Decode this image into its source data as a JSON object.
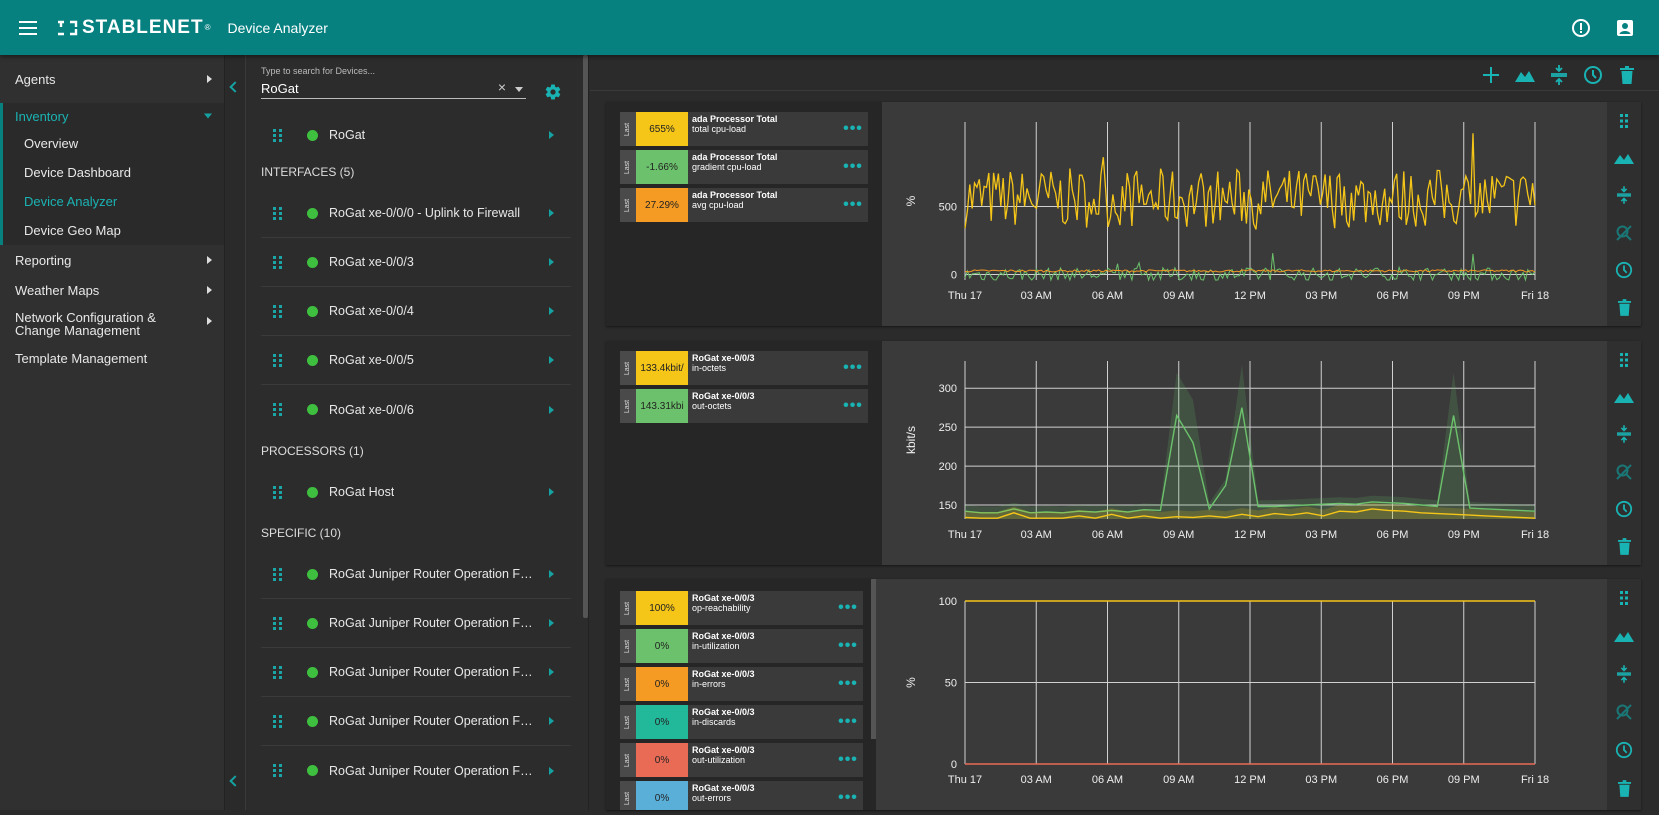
{
  "header": {
    "brand": "STABLENET",
    "brand_mark": "®",
    "app_title": "Device Analyzer",
    "info_icon": "info-icon",
    "user_icon": "user-card-icon"
  },
  "nav": {
    "agents": "Agents",
    "inventory": "Inventory",
    "inventory_items": [
      "Overview",
      "Device Dashboard",
      "Device Analyzer",
      "Device Geo Map"
    ],
    "reporting": "Reporting",
    "weather_maps": "Weather Maps",
    "ncm": "Network Configuration & Change Management",
    "template_mgmt": "Template Management"
  },
  "search": {
    "placeholder": "Type to search for Devices...",
    "value": "RoGat",
    "clear": "×"
  },
  "devices": {
    "root": "RoGat",
    "interfaces_header": "INTERFACES (5)",
    "interfaces": [
      "RoGat xe-0/0/0 - Uplink to Firewall",
      "RoGat xe-0/0/3",
      "RoGat xe-0/0/4",
      "RoGat xe-0/0/5",
      "RoGat xe-0/0/6"
    ],
    "processors_header": "PROCESSORS (1)",
    "processors": [
      "RoGat Host"
    ],
    "specific_header": "SPECIFIC (10)",
    "specific": [
      "RoGat Juniper Router Operation Fan ...",
      "RoGat Juniper Router Operation Fan ...",
      "RoGat Juniper Router Operation Fan ...",
      "RoGat Juniper Router Operation Fan ...",
      "RoGat Juniper Router Operation Fan ..."
    ]
  },
  "toolbar": {
    "icons": [
      "add-icon",
      "area-chart-icon",
      "compress-icon",
      "clock-icon",
      "trash-icon"
    ]
  },
  "colors": {
    "header": "#078080",
    "accent": "#1ab3b3",
    "yellow": "#f5c518",
    "green": "#6cc26c",
    "orange": "#f59a23",
    "teal_series": "#22b89a",
    "red": "#e96a55",
    "blue": "#5aafd8"
  },
  "legend_tag": "Last",
  "charts": [
    {
      "ylabel": "%",
      "legend": [
        {
          "value": "655%",
          "name": "ada Processor Total",
          "metric": "total cpu-load",
          "color": "#f5c518"
        },
        {
          "value": "-1.66%",
          "name": "ada Processor Total",
          "metric": "gradient cpu-load",
          "color": "#6cc26c"
        },
        {
          "value": "27.29%",
          "name": "ada Processor Total",
          "metric": "avg cpu-load",
          "color": "#f59a23"
        }
      ]
    },
    {
      "ylabel": "kbit/s",
      "legend": [
        {
          "value": "133.4kbit/",
          "name": "RoGat xe-0/0/3",
          "metric": "in-octets",
          "color": "#f5c518"
        },
        {
          "value": "143.31kbi",
          "name": "RoGat xe-0/0/3",
          "metric": "out-octets",
          "color": "#6cc26c"
        }
      ]
    },
    {
      "ylabel": "%",
      "legend": [
        {
          "value": "100%",
          "name": "RoGat xe-0/0/3",
          "metric": "op-reachability",
          "color": "#f5c518"
        },
        {
          "value": "0%",
          "name": "RoGat xe-0/0/3",
          "metric": "in-utilization",
          "color": "#6cc26c"
        },
        {
          "value": "0%",
          "name": "RoGat xe-0/0/3",
          "metric": "in-errors",
          "color": "#f59a23"
        },
        {
          "value": "0%",
          "name": "RoGat xe-0/0/3",
          "metric": "in-discards",
          "color": "#22b89a"
        },
        {
          "value": "0%",
          "name": "RoGat xe-0/0/3",
          "metric": "out-utilization",
          "color": "#e96a55"
        },
        {
          "value": "0%",
          "name": "RoGat xe-0/0/3",
          "metric": "out-errors",
          "color": "#5aafd8"
        }
      ]
    }
  ],
  "chart_data": [
    {
      "type": "line",
      "title": "",
      "ylabel": "%",
      "x_ticks": [
        "Thu 17",
        "03 AM",
        "06 AM",
        "09 AM",
        "12 PM",
        "03 PM",
        "06 PM",
        "09 PM",
        "Fri 18"
      ],
      "y_ticks": [
        0,
        500
      ],
      "ylim": [
        -40,
        1120
      ],
      "series": [
        {
          "name": "total cpu-load",
          "color": "#f5c518",
          "approx_level": 560,
          "spread": 220
        },
        {
          "name": "gradient cpu-load",
          "color": "#6cc26c",
          "approx_level": 0,
          "spread": 50
        },
        {
          "name": "avg cpu-load",
          "color": "#f59a23",
          "approx_level": 27,
          "spread": 8
        }
      ]
    },
    {
      "type": "area",
      "title": "",
      "ylabel": "kbit/s",
      "x_ticks": [
        "Thu 17",
        "03 AM",
        "06 AM",
        "09 AM",
        "12 PM",
        "03 PM",
        "06 PM",
        "09 PM",
        "Fri 18"
      ],
      "y_ticks": [
        150,
        200,
        250,
        300
      ],
      "ylim": [
        132,
        335
      ],
      "series": [
        {
          "name": "in-octets",
          "color": "#f5c518",
          "values": [
            134,
            133,
            133,
            140,
            133,
            133,
            133,
            136,
            133,
            138,
            133,
            136,
            133,
            135,
            134,
            136,
            134,
            138,
            135,
            139,
            137,
            140,
            136,
            142,
            141,
            145,
            143,
            142,
            140,
            139,
            138,
            137,
            136,
            135,
            134,
            133
          ]
        },
        {
          "name": "out-octets",
          "color": "#6cc26c",
          "values": [
            142,
            140,
            140,
            145,
            140,
            141,
            140,
            142,
            141,
            143,
            141,
            144,
            143,
            265,
            230,
            145,
            175,
            275,
            148,
            148,
            149,
            150,
            151,
            152,
            151,
            154,
            153,
            152,
            150,
            148,
            265,
            146,
            145,
            144,
            143,
            142
          ]
        }
      ]
    },
    {
      "type": "line",
      "title": "",
      "ylabel": "%",
      "x_ticks": [
        "Thu 17",
        "03 AM",
        "06 AM",
        "09 AM",
        "12 PM",
        "03 PM",
        "06 PM",
        "09 PM",
        "Fri 18"
      ],
      "y_ticks": [
        0,
        50,
        100
      ],
      "ylim": [
        0,
        100
      ],
      "series": [
        {
          "name": "op-reachability",
          "color": "#f5c518",
          "values": [
            100,
            100
          ]
        },
        {
          "name": "out-utilization",
          "color": "#e96a55",
          "values": [
            0,
            0
          ]
        }
      ]
    }
  ]
}
